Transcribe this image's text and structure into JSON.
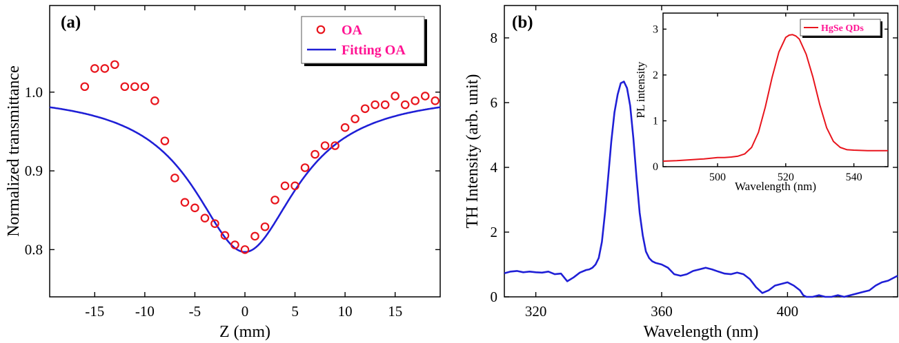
{
  "chart_data": [
    {
      "panel": "(a)",
      "type": "scatter",
      "xlabel": "Z (mm)",
      "ylabel": "Normalized transmittance",
      "xlim": [
        -19.5,
        19.5
      ],
      "ylim": [
        0.74,
        1.11
      ],
      "xticks": [
        -15,
        -10,
        -5,
        0,
        5,
        10,
        15
      ],
      "xtick_labels": [
        "-15",
        "-10",
        "-5",
        "0",
        "5",
        "10",
        "15"
      ],
      "yticks": [
        0.8,
        0.9,
        1.0
      ],
      "ytick_labels": [
        "0.8",
        "0.9",
        "1.0"
      ],
      "grid": false,
      "legend_position": "top-right",
      "series": [
        {
          "name": "OA",
          "kind": "markers",
          "color": "#e8141c",
          "marker": "open-circle",
          "x": [
            -16,
            -15,
            -14,
            -13,
            -12,
            -11,
            -10,
            -9,
            -8,
            -7,
            -6,
            -5,
            -4,
            -3,
            -2,
            -1,
            0,
            1,
            2,
            3,
            4,
            5,
            6,
            7,
            8,
            9,
            10,
            11,
            12,
            13,
            14,
            15,
            16,
            17,
            18,
            19
          ],
          "y": [
            1.007,
            1.03,
            1.03,
            1.035,
            1.007,
            1.007,
            1.007,
            0.989,
            0.938,
            0.891,
            0.86,
            0.853,
            0.84,
            0.833,
            0.818,
            0.806,
            0.8,
            0.817,
            0.829,
            0.863,
            0.881,
            0.881,
            0.904,
            0.921,
            0.932,
            0.932,
            0.955,
            0.966,
            0.979,
            0.984,
            0.984,
            0.995,
            0.984,
            0.989,
            0.995,
            0.989
          ]
        },
        {
          "name": "Fitting OA",
          "kind": "line",
          "color": "#1f1fd6",
          "model": {
            "baseline": 1.0,
            "depth": 0.203,
            "z0": 6.3
          }
        }
      ]
    },
    {
      "panel": "(b)",
      "type": "line",
      "xlabel": "Wavelength (nm)",
      "ylabel": "TH Intensity (arb. unit)",
      "xlim": [
        310,
        435
      ],
      "ylim": [
        0,
        9
      ],
      "xticks": [
        320,
        360,
        400
      ],
      "xtick_labels": [
        "320",
        "360",
        "400"
      ],
      "yticks": [
        0,
        2,
        4,
        6,
        8
      ],
      "ytick_labels": [
        "0",
        "2",
        "4",
        "6",
        "8"
      ],
      "grid": false,
      "series": [
        {
          "color": "#1f1fd6",
          "x": [
            310,
            312,
            314,
            316,
            318,
            320,
            322,
            324,
            326,
            328,
            330,
            332,
            334,
            336,
            337,
            338,
            339,
            340,
            341,
            342,
            343,
            344,
            345,
            346,
            347,
            348,
            349,
            350,
            351,
            352,
            353,
            354,
            355,
            356,
            357,
            358,
            360,
            362,
            364,
            366,
            368,
            370,
            372,
            374,
            376,
            378,
            380,
            382,
            384,
            386,
            388,
            390,
            392,
            394,
            396,
            398,
            400,
            402,
            404,
            405,
            406,
            408,
            410,
            412,
            414,
            416,
            418,
            420,
            422,
            424,
            426,
            428,
            430,
            432,
            435
          ],
          "y": [
            0.73,
            0.78,
            0.8,
            0.76,
            0.78,
            0.76,
            0.75,
            0.78,
            0.7,
            0.72,
            0.48,
            0.6,
            0.75,
            0.83,
            0.85,
            0.9,
            1.0,
            1.2,
            1.7,
            2.6,
            3.7,
            4.8,
            5.7,
            6.25,
            6.6,
            6.65,
            6.45,
            5.9,
            4.9,
            3.7,
            2.6,
            1.9,
            1.4,
            1.2,
            1.1,
            1.05,
            1.0,
            0.9,
            0.7,
            0.65,
            0.7,
            0.8,
            0.85,
            0.9,
            0.85,
            0.78,
            0.72,
            0.7,
            0.75,
            0.7,
            0.55,
            0.3,
            0.12,
            0.2,
            0.35,
            0.4,
            0.45,
            0.35,
            0.2,
            0.05,
            0.0,
            0.0,
            0.05,
            0.0,
            0.0,
            0.05,
            0.0,
            0.05,
            0.1,
            0.15,
            0.2,
            0.35,
            0.45,
            0.5,
            0.65
          ]
        }
      ]
    },
    {
      "panel": "(b) inset",
      "type": "line",
      "xlabel": "Wavelength (nm)",
      "ylabel": "PL intensity",
      "xlim": [
        484,
        550
      ],
      "ylim": [
        0,
        3.35
      ],
      "xticks": [
        500,
        520,
        540
      ],
      "xtick_labels": [
        "500",
        "520",
        "540"
      ],
      "yticks": [
        0,
        1,
        2,
        3
      ],
      "ytick_labels": [
        "0",
        "1",
        "2",
        "3"
      ],
      "grid": false,
      "legend_position": "top-right",
      "series": [
        {
          "name": "HgSe QDs",
          "color": "#e8141c",
          "x": [
            484,
            488,
            492,
            496,
            500,
            502,
            504,
            506,
            508,
            510,
            512,
            514,
            516,
            518,
            520,
            521,
            522,
            523,
            524,
            526,
            528,
            530,
            532,
            534,
            536,
            538,
            540,
            544,
            548,
            550
          ],
          "y": [
            0.12,
            0.13,
            0.15,
            0.17,
            0.2,
            0.2,
            0.21,
            0.23,
            0.28,
            0.42,
            0.75,
            1.3,
            1.95,
            2.5,
            2.82,
            2.87,
            2.88,
            2.85,
            2.78,
            2.45,
            1.95,
            1.35,
            0.85,
            0.55,
            0.42,
            0.37,
            0.36,
            0.35,
            0.35,
            0.35
          ]
        }
      ]
    }
  ]
}
